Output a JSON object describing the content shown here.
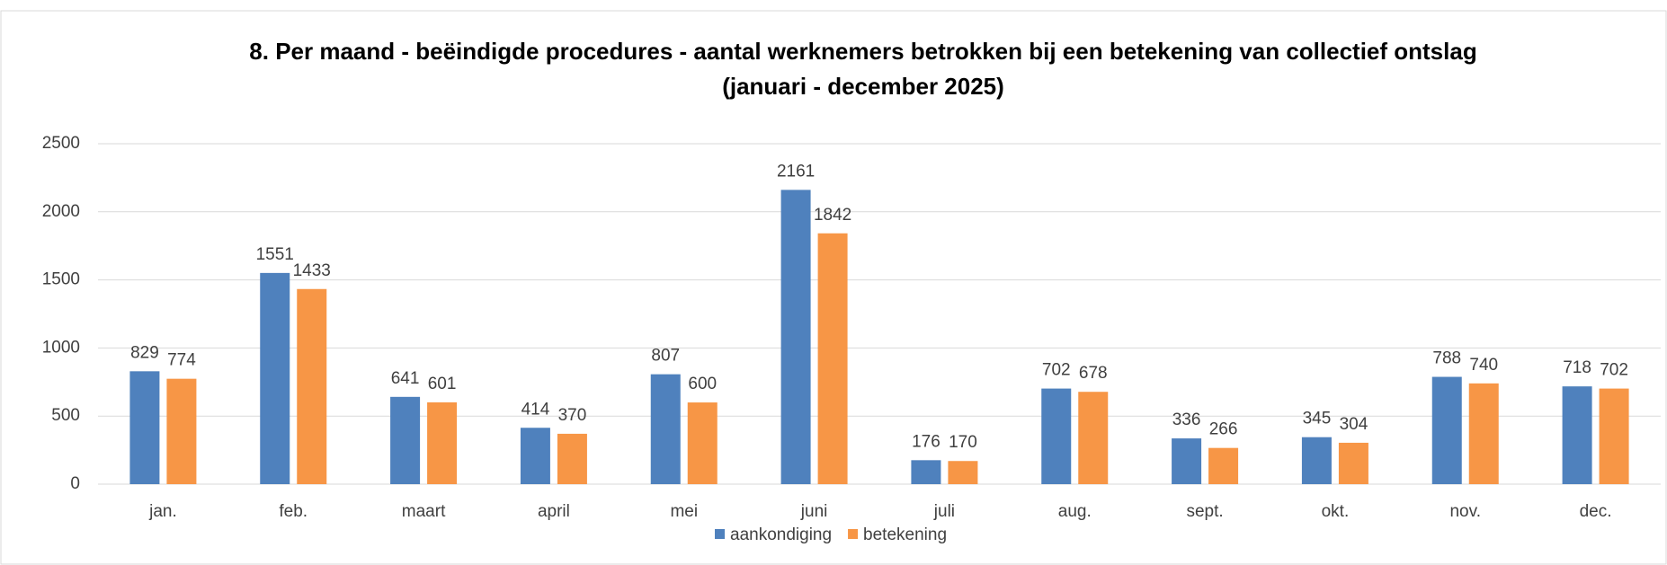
{
  "chart_data": {
    "type": "bar",
    "title": "8. Per maand - beëindigde procedures - aantal werknemers betrokken bij een betekening van collectief ontslag",
    "subtitle": "(januari - december 2025)",
    "categories": [
      "jan.",
      "feb.",
      "maart",
      "april",
      "mei",
      "juni",
      "juli",
      "aug.",
      "sept.",
      "okt.",
      "nov.",
      "dec."
    ],
    "series": [
      {
        "name": "aankondiging",
        "color": "#4f81bd",
        "values": [
          829,
          1551,
          641,
          414,
          807,
          2161,
          176,
          702,
          336,
          345,
          788,
          718
        ]
      },
      {
        "name": "betekening",
        "color": "#f79646",
        "values": [
          774,
          1433,
          601,
          370,
          600,
          1842,
          170,
          678,
          266,
          304,
          740,
          702
        ]
      }
    ],
    "ylim": [
      0,
      2500
    ],
    "yticks": [
      0,
      500,
      1000,
      1500,
      2000,
      2500
    ],
    "grid": true,
    "legend": "bottom"
  }
}
